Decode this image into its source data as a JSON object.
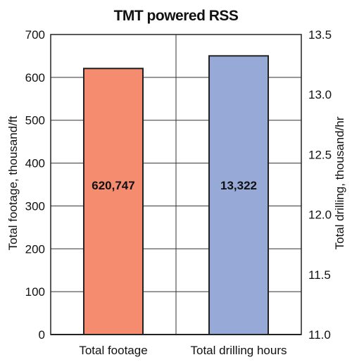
{
  "chart_data": {
    "type": "bar",
    "title": "TMT powered RSS",
    "categories": [
      "Total footage",
      "Total drilling hours"
    ],
    "series": [
      {
        "name": "Total footage",
        "axis": "left",
        "values": [
          620.747,
          null
        ],
        "data_label": "620,747",
        "color": "#f58b6f"
      },
      {
        "name": "Total drilling hours",
        "axis": "right",
        "values": [
          null,
          13.322
        ],
        "data_label": "13,322",
        "color": "#97a9d6"
      }
    ],
    "y_left": {
      "label": "Total footage, thousand/ft",
      "lim": [
        0,
        700
      ],
      "ticks": [
        "0",
        "100",
        "200",
        "300",
        "400",
        "500",
        "600",
        "700"
      ]
    },
    "y_right": {
      "label": "Total drilling, thousand/hr",
      "lim": [
        11.0,
        13.5
      ],
      "ticks": [
        "11.0",
        "11.5",
        "12.0",
        "12.5",
        "13.0",
        "13.5"
      ]
    },
    "grid": true,
    "legend": "none"
  }
}
